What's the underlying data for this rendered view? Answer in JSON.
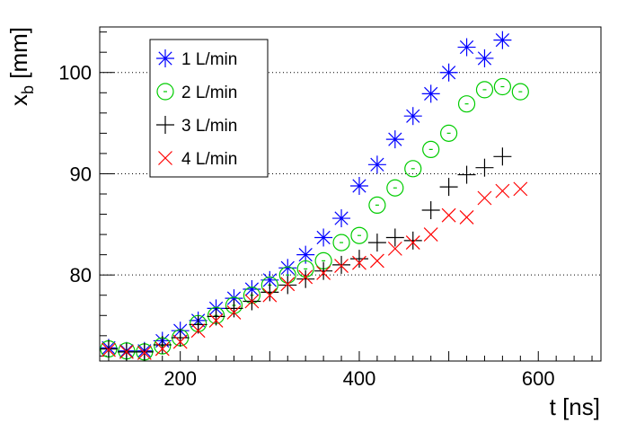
{
  "chart_data": {
    "type": "scatter",
    "title": "",
    "xlabel": "t [ns]",
    "ylabel_main": "x",
    "ylabel_sub": "b",
    "ylabel_unit": " [mm]",
    "xlim": [
      110,
      670
    ],
    "ylim": [
      71.5,
      104.5
    ],
    "xticks": [
      200,
      400,
      600
    ],
    "yticks": [
      80,
      90,
      100
    ],
    "grid": "y-dotted",
    "legend_position": "top-left",
    "series": [
      {
        "name": "1 L/min",
        "color": "#0000ff",
        "marker": "asterisk",
        "x": [
          120,
          140,
          160,
          180,
          200,
          220,
          240,
          260,
          280,
          300,
          320,
          340,
          360,
          380,
          400,
          420,
          440,
          460,
          480,
          500,
          520,
          540,
          560
        ],
        "y": [
          72.8,
          72.5,
          72.5,
          73.5,
          74.5,
          75.5,
          76.7,
          77.7,
          78.6,
          79.5,
          80.7,
          82.0,
          83.7,
          85.6,
          88.8,
          90.9,
          93.4,
          95.7,
          97.9,
          100.0,
          102.5,
          101.4,
          103.2
        ]
      },
      {
        "name": "2 L/min",
        "color": "#00cc00",
        "marker": "circle",
        "x": [
          120,
          140,
          160,
          180,
          200,
          220,
          240,
          260,
          280,
          300,
          320,
          340,
          360,
          380,
          400,
          420,
          440,
          460,
          480,
          500,
          520,
          540,
          560,
          580
        ],
        "y": [
          72.7,
          72.5,
          72.4,
          73.0,
          73.8,
          75.2,
          76.0,
          77.0,
          78.0,
          79.0,
          80.0,
          80.6,
          81.4,
          83.2,
          83.9,
          86.9,
          88.6,
          90.5,
          92.4,
          94.0,
          96.9,
          98.3,
          98.6,
          98.1
        ]
      },
      {
        "name": "3 L/min",
        "color": "#000000",
        "marker": "plus",
        "x": [
          120,
          140,
          160,
          180,
          200,
          220,
          240,
          260,
          280,
          300,
          320,
          340,
          360,
          380,
          400,
          420,
          440,
          460,
          480,
          500,
          520,
          540,
          560
        ],
        "y": [
          72.7,
          72.4,
          72.4,
          73.1,
          73.8,
          75.1,
          75.9,
          76.7,
          77.4,
          78.3,
          79.0,
          79.6,
          80.4,
          81.0,
          81.6,
          83.2,
          83.7,
          83.4,
          86.4,
          88.7,
          89.9,
          90.6,
          91.7
        ]
      },
      {
        "name": "4 L/min",
        "color": "#ff0000",
        "marker": "cross",
        "x": [
          120,
          140,
          160,
          180,
          200,
          220,
          240,
          260,
          280,
          300,
          320,
          340,
          360,
          380,
          400,
          420,
          440,
          460,
          480,
          500,
          520,
          540,
          560,
          580
        ],
        "y": [
          72.6,
          72.4,
          72.3,
          72.7,
          73.4,
          74.5,
          75.5,
          76.3,
          77.4,
          78.0,
          79.1,
          79.8,
          80.2,
          80.9,
          81.2,
          81.4,
          82.6,
          83.2,
          84.0,
          85.9,
          85.7,
          87.6,
          88.3,
          88.5
        ]
      }
    ]
  }
}
